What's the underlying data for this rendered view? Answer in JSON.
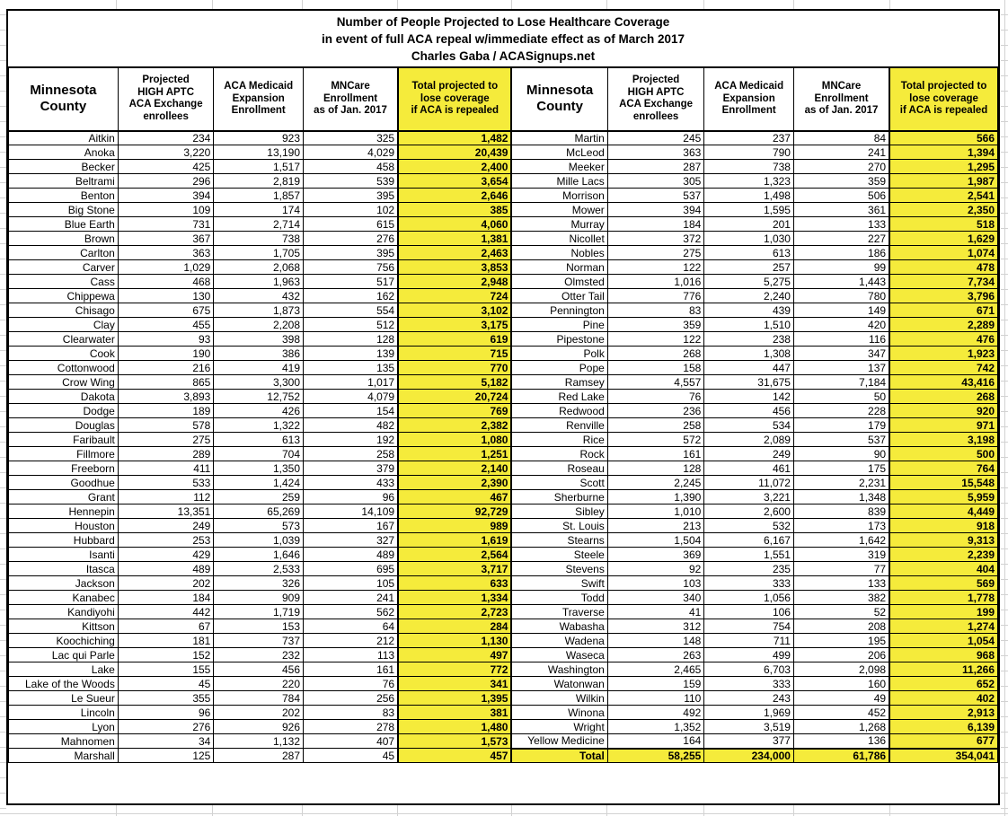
{
  "colors": {
    "highlight_yellow": "#F5EB3B"
  },
  "chart_data": {
    "type": "table",
    "title_lines": [
      "Number of People Projected to Lose Healthcare Coverage",
      "in event of full ACA repeal w/immediate effect as of March 2017",
      "Charles Gaba / ACASignups.net"
    ],
    "column_headers": [
      "Minnesota\nCounty",
      "Projected\nHIGH APTC\nACA Exchange\nenrollees",
      "ACA Medicaid\nExpansion\nEnrollment",
      "MNCare\nEnrollment\nas of Jan. 2017",
      "Total projected to\nlose coverage\nif ACA is repealed"
    ],
    "left_rows": [
      [
        "Aitkin",
        "234",
        "923",
        "325",
        "1,482"
      ],
      [
        "Anoka",
        "3,220",
        "13,190",
        "4,029",
        "20,439"
      ],
      [
        "Becker",
        "425",
        "1,517",
        "458",
        "2,400"
      ],
      [
        "Beltrami",
        "296",
        "2,819",
        "539",
        "3,654"
      ],
      [
        "Benton",
        "394",
        "1,857",
        "395",
        "2,646"
      ],
      [
        "Big Stone",
        "109",
        "174",
        "102",
        "385"
      ],
      [
        "Blue Earth",
        "731",
        "2,714",
        "615",
        "4,060"
      ],
      [
        "Brown",
        "367",
        "738",
        "276",
        "1,381"
      ],
      [
        "Carlton",
        "363",
        "1,705",
        "395",
        "2,463"
      ],
      [
        "Carver",
        "1,029",
        "2,068",
        "756",
        "3,853"
      ],
      [
        "Cass",
        "468",
        "1,963",
        "517",
        "2,948"
      ],
      [
        "Chippewa",
        "130",
        "432",
        "162",
        "724"
      ],
      [
        "Chisago",
        "675",
        "1,873",
        "554",
        "3,102"
      ],
      [
        "Clay",
        "455",
        "2,208",
        "512",
        "3,175"
      ],
      [
        "Clearwater",
        "93",
        "398",
        "128",
        "619"
      ],
      [
        "Cook",
        "190",
        "386",
        "139",
        "715"
      ],
      [
        "Cottonwood",
        "216",
        "419",
        "135",
        "770"
      ],
      [
        "Crow Wing",
        "865",
        "3,300",
        "1,017",
        "5,182"
      ],
      [
        "Dakota",
        "3,893",
        "12,752",
        "4,079",
        "20,724"
      ],
      [
        "Dodge",
        "189",
        "426",
        "154",
        "769"
      ],
      [
        "Douglas",
        "578",
        "1,322",
        "482",
        "2,382"
      ],
      [
        "Faribault",
        "275",
        "613",
        "192",
        "1,080"
      ],
      [
        "Fillmore",
        "289",
        "704",
        "258",
        "1,251"
      ],
      [
        "Freeborn",
        "411",
        "1,350",
        "379",
        "2,140"
      ],
      [
        "Goodhue",
        "533",
        "1,424",
        "433",
        "2,390"
      ],
      [
        "Grant",
        "112",
        "259",
        "96",
        "467"
      ],
      [
        "Hennepin",
        "13,351",
        "65,269",
        "14,109",
        "92,729"
      ],
      [
        "Houston",
        "249",
        "573",
        "167",
        "989"
      ],
      [
        "Hubbard",
        "253",
        "1,039",
        "327",
        "1,619"
      ],
      [
        "Isanti",
        "429",
        "1,646",
        "489",
        "2,564"
      ],
      [
        "Itasca",
        "489",
        "2,533",
        "695",
        "3,717"
      ],
      [
        "Jackson",
        "202",
        "326",
        "105",
        "633"
      ],
      [
        "Kanabec",
        "184",
        "909",
        "241",
        "1,334"
      ],
      [
        "Kandiyohi",
        "442",
        "1,719",
        "562",
        "2,723"
      ],
      [
        "Kittson",
        "67",
        "153",
        "64",
        "284"
      ],
      [
        "Koochiching",
        "181",
        "737",
        "212",
        "1,130"
      ],
      [
        "Lac qui Parle",
        "152",
        "232",
        "113",
        "497"
      ],
      [
        "Lake",
        "155",
        "456",
        "161",
        "772"
      ],
      [
        "Lake of the Woods",
        "45",
        "220",
        "76",
        "341"
      ],
      [
        "Le Sueur",
        "355",
        "784",
        "256",
        "1,395"
      ],
      [
        "Lincoln",
        "96",
        "202",
        "83",
        "381"
      ],
      [
        "Lyon",
        "276",
        "926",
        "278",
        "1,480"
      ],
      [
        "Mahnomen",
        "34",
        "1,132",
        "407",
        "1,573"
      ],
      [
        "Marshall",
        "125",
        "287",
        "45",
        "457"
      ]
    ],
    "right_rows": [
      [
        "Martin",
        "245",
        "237",
        "84",
        "566"
      ],
      [
        "McLeod",
        "363",
        "790",
        "241",
        "1,394"
      ],
      [
        "Meeker",
        "287",
        "738",
        "270",
        "1,295"
      ],
      [
        "Mille Lacs",
        "305",
        "1,323",
        "359",
        "1,987"
      ],
      [
        "Morrison",
        "537",
        "1,498",
        "506",
        "2,541"
      ],
      [
        "Mower",
        "394",
        "1,595",
        "361",
        "2,350"
      ],
      [
        "Murray",
        "184",
        "201",
        "133",
        "518"
      ],
      [
        "Nicollet",
        "372",
        "1,030",
        "227",
        "1,629"
      ],
      [
        "Nobles",
        "275",
        "613",
        "186",
        "1,074"
      ],
      [
        "Norman",
        "122",
        "257",
        "99",
        "478"
      ],
      [
        "Olmsted",
        "1,016",
        "5,275",
        "1,443",
        "7,734"
      ],
      [
        "Otter Tail",
        "776",
        "2,240",
        "780",
        "3,796"
      ],
      [
        "Pennington",
        "83",
        "439",
        "149",
        "671"
      ],
      [
        "Pine",
        "359",
        "1,510",
        "420",
        "2,289"
      ],
      [
        "Pipestone",
        "122",
        "238",
        "116",
        "476"
      ],
      [
        "Polk",
        "268",
        "1,308",
        "347",
        "1,923"
      ],
      [
        "Pope",
        "158",
        "447",
        "137",
        "742"
      ],
      [
        "Ramsey",
        "4,557",
        "31,675",
        "7,184",
        "43,416"
      ],
      [
        "Red Lake",
        "76",
        "142",
        "50",
        "268"
      ],
      [
        "Redwood",
        "236",
        "456",
        "228",
        "920"
      ],
      [
        "Renville",
        "258",
        "534",
        "179",
        "971"
      ],
      [
        "Rice",
        "572",
        "2,089",
        "537",
        "3,198"
      ],
      [
        "Rock",
        "161",
        "249",
        "90",
        "500"
      ],
      [
        "Roseau",
        "128",
        "461",
        "175",
        "764"
      ],
      [
        "Scott",
        "2,245",
        "11,072",
        "2,231",
        "15,548"
      ],
      [
        "Sherburne",
        "1,390",
        "3,221",
        "1,348",
        "5,959"
      ],
      [
        "Sibley",
        "1,010",
        "2,600",
        "839",
        "4,449"
      ],
      [
        "St. Louis",
        "213",
        "532",
        "173",
        "918"
      ],
      [
        "Stearns",
        "1,504",
        "6,167",
        "1,642",
        "9,313"
      ],
      [
        "Steele",
        "369",
        "1,551",
        "319",
        "2,239"
      ],
      [
        "Stevens",
        "92",
        "235",
        "77",
        "404"
      ],
      [
        "Swift",
        "103",
        "333",
        "133",
        "569"
      ],
      [
        "Todd",
        "340",
        "1,056",
        "382",
        "1,778"
      ],
      [
        "Traverse",
        "41",
        "106",
        "52",
        "199"
      ],
      [
        "Wabasha",
        "312",
        "754",
        "208",
        "1,274"
      ],
      [
        "Wadena",
        "148",
        "711",
        "195",
        "1,054"
      ],
      [
        "Waseca",
        "263",
        "499",
        "206",
        "968"
      ],
      [
        "Washington",
        "2,465",
        "6,703",
        "2,098",
        "11,266"
      ],
      [
        "Watonwan",
        "159",
        "333",
        "160",
        "652"
      ],
      [
        "Wilkin",
        "110",
        "243",
        "49",
        "402"
      ],
      [
        "Winona",
        "492",
        "1,969",
        "452",
        "2,913"
      ],
      [
        "Wright",
        "1,352",
        "3,519",
        "1,268",
        "6,139"
      ],
      [
        "Yellow Medicine",
        "164",
        "377",
        "136",
        "677"
      ]
    ],
    "total_row": [
      "Total",
      "58,255",
      "234,000",
      "61,786",
      "354,041"
    ]
  }
}
